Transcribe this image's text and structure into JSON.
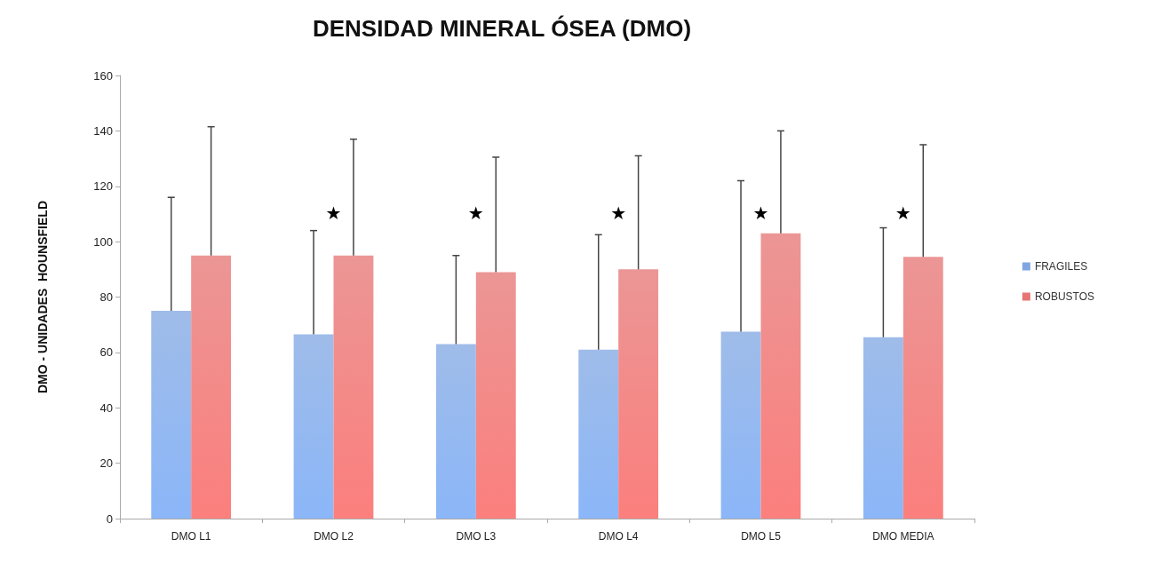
{
  "chart_data": {
    "type": "bar",
    "title": "DENSIDAD MINERAL ÓSEA (DMO)",
    "ylabel": "DMO - UNIDADES  HOUNSFIELD",
    "categories": [
      "DMO L1",
      "DMO L2",
      "DMO L3",
      "DMO L4",
      "DMO L5",
      "DMO MEDIA"
    ],
    "series": [
      {
        "name": "FRAGILES",
        "color": "#7fa6e2",
        "values": [
          75,
          66.5,
          63,
          61,
          67.5,
          65.5
        ],
        "errors": [
          [
            75,
            116
          ],
          [
            66.5,
            104
          ],
          [
            63,
            95
          ],
          [
            61,
            102.5
          ],
          [
            67.5,
            122
          ],
          [
            65.5,
            105
          ]
        ]
      },
      {
        "name": "ROBUSTOS",
        "color": "#e57472",
        "values": [
          95,
          95,
          89,
          90,
          103,
          94.5
        ],
        "errors": [
          [
            95,
            141.5
          ],
          [
            95,
            137
          ],
          [
            89,
            130.5
          ],
          [
            90,
            131
          ],
          [
            103,
            140
          ],
          [
            94.5,
            135
          ]
        ]
      }
    ],
    "ylim": [
      0,
      160
    ],
    "yticks": [
      0,
      20,
      40,
      60,
      80,
      100,
      120,
      140,
      160
    ],
    "grid": false,
    "legend": "right",
    "annotations": [
      "★",
      "★",
      "★",
      "★",
      "★"
    ]
  }
}
